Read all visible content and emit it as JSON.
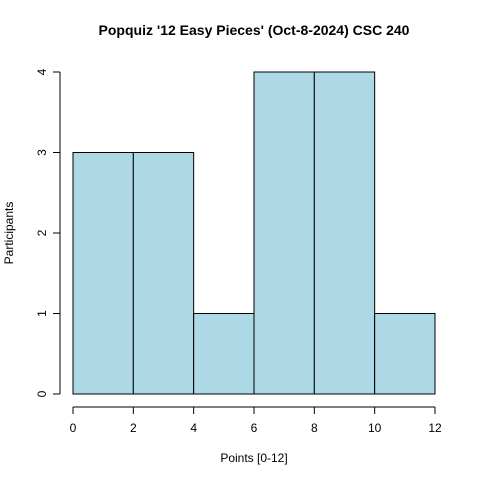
{
  "chart_data": {
    "type": "bar",
    "title": "Popquiz '12 Easy Pieces' (Oct-8-2024) CSC 240",
    "xlabel": "Points [0-12]",
    "ylabel": "Participants",
    "bins": [
      {
        "from": 0,
        "to": 2,
        "count": 3
      },
      {
        "from": 2,
        "to": 4,
        "count": 3
      },
      {
        "from": 4,
        "to": 6,
        "count": 1
      },
      {
        "from": 6,
        "to": 8,
        "count": 4
      },
      {
        "from": 8,
        "to": 10,
        "count": 4
      },
      {
        "from": 10,
        "to": 12,
        "count": 1
      }
    ],
    "xlim": [
      0,
      12
    ],
    "ylim": [
      0,
      4
    ],
    "x_ticks": [
      "0",
      "2",
      "4",
      "6",
      "8",
      "10",
      "12"
    ],
    "y_ticks": [
      "0",
      "1",
      "2",
      "3",
      "4"
    ],
    "bar_color": "#add8e6",
    "grid": false
  }
}
